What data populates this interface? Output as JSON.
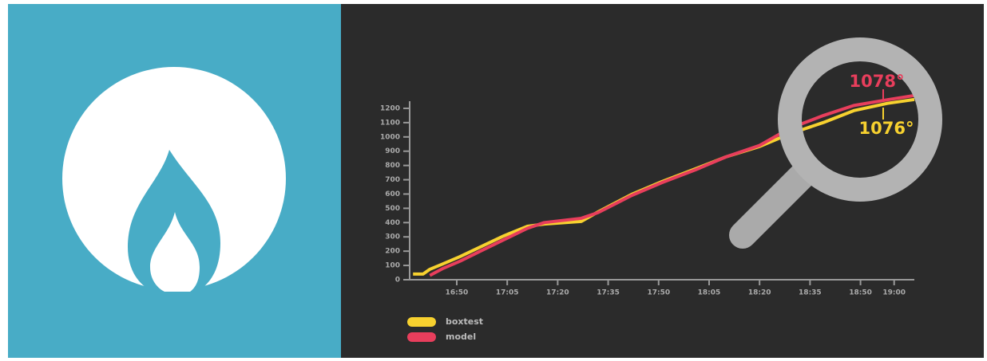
{
  "chart_data": {
    "type": "line",
    "x": [
      "16:37",
      "16:40",
      "16:42",
      "16:46",
      "16:51",
      "16:57",
      "17:04",
      "17:11",
      "17:16",
      "17:27",
      "17:32",
      "17:42",
      "17:51",
      "18:01",
      "18:10",
      "18:20",
      "18:29",
      "18:39",
      "18:48",
      "18:58",
      "19:06"
    ],
    "series": [
      {
        "name": "boxtest",
        "color": "#f7d12f",
        "values": [
          40,
          40,
          73,
          112,
          162,
          229,
          307,
          374,
          390,
          408,
          475,
          598,
          687,
          777,
          860,
          933,
          1022,
          1101,
          1184,
          1235,
          1262
        ]
      },
      {
        "name": "model",
        "color": "#e83e5c",
        "values": [
          null,
          null,
          30,
          80,
          130,
          200,
          280,
          360,
          400,
          430,
          470,
          590,
          680,
          770,
          860,
          940,
          1060,
          1150,
          1220,
          1260,
          1290
        ]
      }
    ],
    "xlim": [
      "16:36",
      "19:06"
    ],
    "xticks": [
      "16:50",
      "17:05",
      "17:20",
      "17:35",
      "17:50",
      "18:05",
      "18:20",
      "18:35",
      "18:50",
      "19:00"
    ],
    "ylim": [
      0,
      1250
    ],
    "yticks": [
      0,
      100,
      200,
      300,
      400,
      500,
      600,
      700,
      800,
      900,
      1000,
      1100,
      1200
    ],
    "annotations": [
      "1078°",
      "1076°"
    ]
  }
}
